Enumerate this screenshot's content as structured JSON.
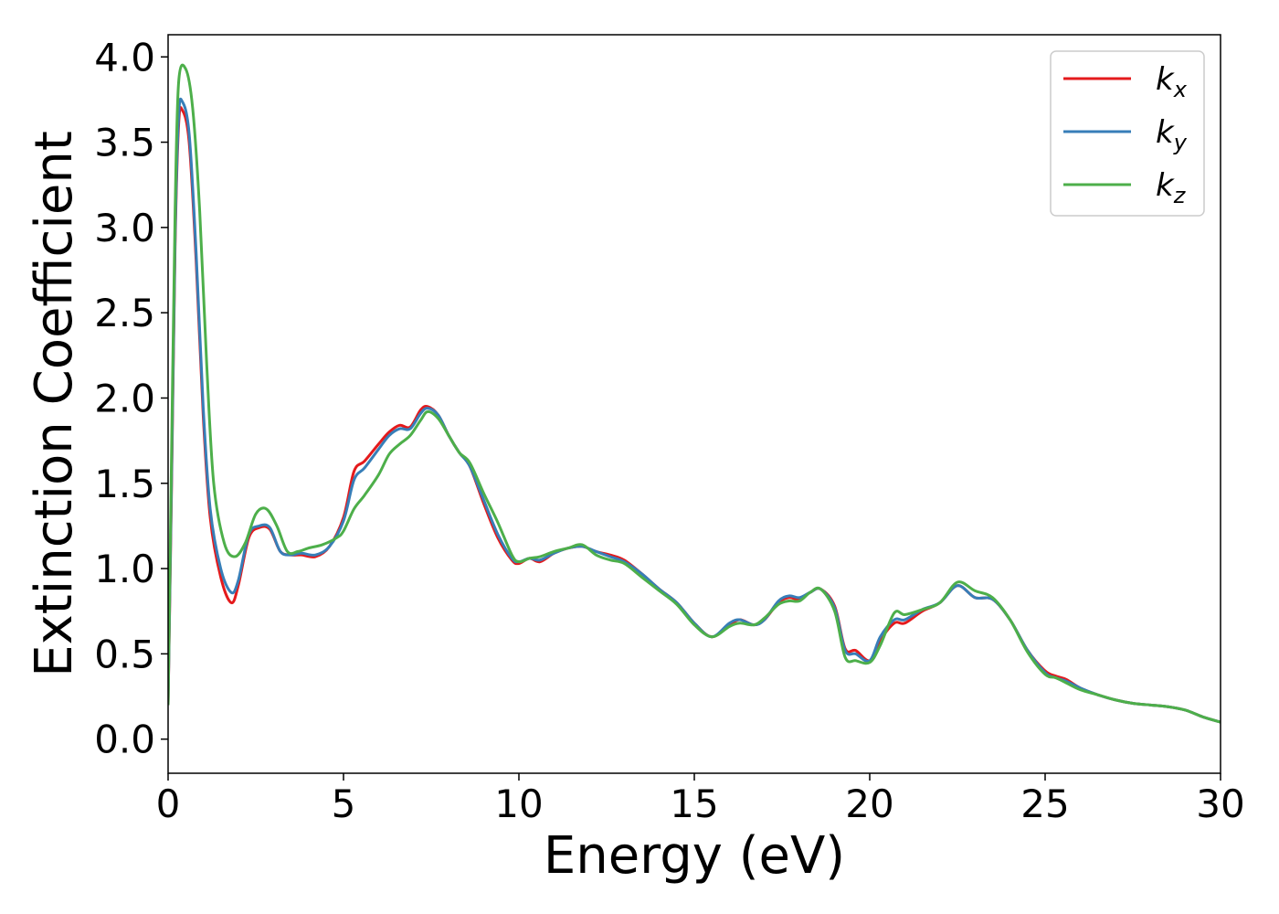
{
  "chart_data": {
    "type": "line",
    "title": "",
    "xlabel": "Energy (eV)",
    "ylabel": "Extinction Coefficient",
    "xlim": [
      0,
      30
    ],
    "ylim": [
      -0.2,
      4.13
    ],
    "xticks": [
      0,
      5,
      10,
      15,
      20,
      25,
      30
    ],
    "xtick_labels": [
      "0",
      "5",
      "10",
      "15",
      "20",
      "25",
      "30"
    ],
    "yticks": [
      0.0,
      0.5,
      1.0,
      1.5,
      2.0,
      2.5,
      3.0,
      3.5,
      4.0
    ],
    "ytick_labels": [
      "0.0",
      "0.5",
      "1.0",
      "1.5",
      "2.0",
      "2.5",
      "3.0",
      "3.5",
      "4.0"
    ],
    "grid": false,
    "legend_position": "top-right",
    "series": [
      {
        "name": "k",
        "subscript": "x",
        "color": "#e41a1c",
        "x": [
          0,
          0.1,
          0.2,
          0.3,
          0.4,
          0.6,
          0.8,
          1.0,
          1.2,
          1.5,
          1.8,
          2.0,
          2.3,
          2.6,
          2.9,
          3.2,
          3.5,
          3.8,
          4.2,
          4.6,
          5.0,
          5.3,
          5.6,
          6.0,
          6.3,
          6.6,
          6.9,
          7.2,
          7.4,
          7.7,
          8.0,
          8.3,
          8.6,
          9.0,
          9.4,
          9.8,
          10.0,
          10.3,
          10.6,
          11.0,
          11.4,
          11.8,
          12.2,
          12.6,
          13.0,
          13.5,
          14.0,
          14.5,
          15.0,
          15.5,
          16.0,
          16.3,
          16.7,
          17.0,
          17.4,
          17.7,
          18.0,
          18.3,
          18.6,
          19.0,
          19.3,
          19.6,
          20.0,
          20.3,
          20.7,
          21.0,
          21.5,
          22.0,
          22.5,
          23.0,
          23.5,
          24.0,
          24.5,
          25.0,
          25.3,
          25.6,
          26.0,
          26.5,
          27.0,
          27.5,
          28.0,
          28.5,
          29.0,
          29.5,
          30.0
        ],
        "y": [
          0.2,
          1.5,
          2.9,
          3.6,
          3.69,
          3.5,
          2.8,
          1.9,
          1.3,
          0.95,
          0.8,
          0.9,
          1.18,
          1.24,
          1.23,
          1.1,
          1.08,
          1.08,
          1.07,
          1.13,
          1.3,
          1.57,
          1.63,
          1.73,
          1.8,
          1.84,
          1.83,
          1.93,
          1.95,
          1.9,
          1.78,
          1.68,
          1.6,
          1.38,
          1.18,
          1.05,
          1.03,
          1.06,
          1.04,
          1.09,
          1.12,
          1.13,
          1.1,
          1.08,
          1.05,
          0.97,
          0.88,
          0.8,
          0.68,
          0.6,
          0.67,
          0.7,
          0.67,
          0.7,
          0.8,
          0.83,
          0.82,
          0.86,
          0.88,
          0.78,
          0.53,
          0.52,
          0.46,
          0.58,
          0.68,
          0.68,
          0.75,
          0.8,
          0.9,
          0.83,
          0.82,
          0.7,
          0.52,
          0.4,
          0.37,
          0.35,
          0.3,
          0.26,
          0.23,
          0.21,
          0.2,
          0.19,
          0.17,
          0.13,
          0.1
        ]
      },
      {
        "name": "k",
        "subscript": "y",
        "color": "#377eb8",
        "x": [
          0,
          0.1,
          0.2,
          0.3,
          0.4,
          0.6,
          0.8,
          1.0,
          1.2,
          1.5,
          1.8,
          2.0,
          2.3,
          2.6,
          2.9,
          3.2,
          3.5,
          3.8,
          4.2,
          4.6,
          5.0,
          5.3,
          5.6,
          6.0,
          6.3,
          6.6,
          6.9,
          7.2,
          7.4,
          7.7,
          8.0,
          8.3,
          8.6,
          9.0,
          9.4,
          9.8,
          10.0,
          10.3,
          10.6,
          11.0,
          11.4,
          11.8,
          12.2,
          12.6,
          13.0,
          13.5,
          14.0,
          14.5,
          15.0,
          15.5,
          16.0,
          16.3,
          16.7,
          17.0,
          17.4,
          17.7,
          18.0,
          18.3,
          18.6,
          19.0,
          19.3,
          19.6,
          20.0,
          20.3,
          20.7,
          21.0,
          21.5,
          22.0,
          22.5,
          23.0,
          23.5,
          24.0,
          24.5,
          25.0,
          25.3,
          25.6,
          26.0,
          26.5,
          27.0,
          27.5,
          28.0,
          28.5,
          29.0,
          29.5,
          30.0
        ],
        "y": [
          0.2,
          1.55,
          2.95,
          3.65,
          3.74,
          3.55,
          2.85,
          1.95,
          1.35,
          1.0,
          0.86,
          0.93,
          1.2,
          1.25,
          1.24,
          1.1,
          1.08,
          1.09,
          1.08,
          1.13,
          1.28,
          1.52,
          1.59,
          1.7,
          1.78,
          1.82,
          1.82,
          1.91,
          1.94,
          1.9,
          1.78,
          1.68,
          1.6,
          1.4,
          1.2,
          1.06,
          1.04,
          1.06,
          1.05,
          1.09,
          1.12,
          1.13,
          1.1,
          1.07,
          1.04,
          0.97,
          0.88,
          0.8,
          0.68,
          0.6,
          0.68,
          0.7,
          0.67,
          0.7,
          0.81,
          0.84,
          0.83,
          0.86,
          0.88,
          0.77,
          0.52,
          0.5,
          0.46,
          0.6,
          0.7,
          0.7,
          0.76,
          0.8,
          0.9,
          0.83,
          0.82,
          0.7,
          0.52,
          0.39,
          0.36,
          0.34,
          0.3,
          0.26,
          0.23,
          0.21,
          0.2,
          0.19,
          0.17,
          0.13,
          0.1
        ]
      },
      {
        "name": "k",
        "subscript": "z",
        "color": "#4daf4a",
        "x": [
          0,
          0.1,
          0.2,
          0.3,
          0.5,
          0.7,
          0.9,
          1.1,
          1.3,
          1.6,
          1.9,
          2.2,
          2.5,
          2.8,
          3.1,
          3.4,
          3.7,
          4.0,
          4.4,
          4.8,
          5.0,
          5.3,
          5.6,
          6.0,
          6.3,
          6.6,
          6.9,
          7.2,
          7.4,
          7.7,
          8.0,
          8.3,
          8.6,
          9.0,
          9.4,
          9.8,
          10.0,
          10.3,
          10.6,
          11.0,
          11.4,
          11.8,
          12.2,
          12.6,
          13.0,
          13.5,
          14.0,
          14.5,
          15.0,
          15.5,
          16.0,
          16.3,
          16.7,
          17.0,
          17.4,
          17.7,
          18.0,
          18.3,
          18.6,
          19.0,
          19.3,
          19.6,
          20.0,
          20.3,
          20.7,
          21.0,
          21.5,
          22.0,
          22.5,
          23.0,
          23.5,
          24.0,
          24.5,
          25.0,
          25.3,
          25.6,
          26.0,
          26.5,
          27.0,
          27.5,
          28.0,
          28.5,
          29.0,
          29.5,
          30.0
        ],
        "y": [
          0.2,
          1.7,
          3.1,
          3.85,
          3.93,
          3.7,
          3.1,
          2.2,
          1.5,
          1.15,
          1.07,
          1.15,
          1.32,
          1.35,
          1.25,
          1.1,
          1.1,
          1.12,
          1.14,
          1.18,
          1.22,
          1.35,
          1.43,
          1.55,
          1.67,
          1.73,
          1.78,
          1.87,
          1.92,
          1.88,
          1.78,
          1.68,
          1.62,
          1.44,
          1.27,
          1.08,
          1.04,
          1.06,
          1.07,
          1.1,
          1.12,
          1.14,
          1.08,
          1.05,
          1.03,
          0.95,
          0.87,
          0.79,
          0.67,
          0.6,
          0.66,
          0.68,
          0.67,
          0.71,
          0.79,
          0.81,
          0.81,
          0.86,
          0.88,
          0.75,
          0.48,
          0.46,
          0.45,
          0.55,
          0.74,
          0.73,
          0.76,
          0.8,
          0.92,
          0.87,
          0.83,
          0.7,
          0.51,
          0.38,
          0.36,
          0.33,
          0.29,
          0.26,
          0.23,
          0.21,
          0.2,
          0.19,
          0.17,
          0.13,
          0.1
        ]
      }
    ]
  }
}
